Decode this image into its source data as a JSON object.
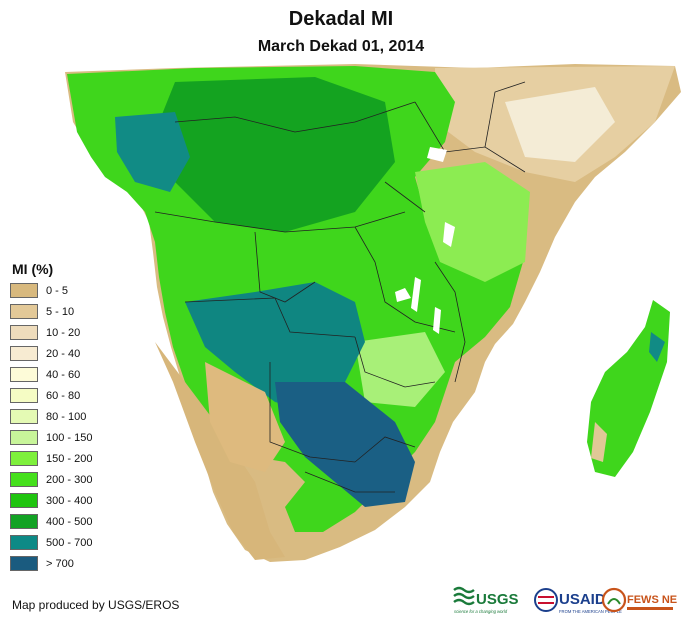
{
  "title": "Dekadal MI",
  "subtitle": "March Dekad 01, 2014",
  "legend": {
    "title": "MI (%)",
    "items": [
      {
        "label": "0 - 5",
        "color": "#d8b97e"
      },
      {
        "label": "5 - 10",
        "color": "#e3c998"
      },
      {
        "label": "10 - 20",
        "color": "#eedcbc"
      },
      {
        "label": "20 - 40",
        "color": "#f7ebd2"
      },
      {
        "label": "40 - 60",
        "color": "#fdfbd8"
      },
      {
        "label": "60 - 80",
        "color": "#f5fcc4"
      },
      {
        "label": "80 - 100",
        "color": "#e4fab4"
      },
      {
        "label": "100 - 150",
        "color": "#c8f59a"
      },
      {
        "label": "150 - 200",
        "color": "#7ef03c"
      },
      {
        "label": "200 - 300",
        "color": "#45e01c"
      },
      {
        "label": "300 - 400",
        "color": "#1fc40f"
      },
      {
        "label": "400 - 500",
        "color": "#12a224"
      },
      {
        "label": "500 - 700",
        "color": "#0d8a86"
      },
      {
        "label": "> 700",
        "color": "#1a5b7f"
      }
    ]
  },
  "credit": "Map produced by USGS/EROS",
  "logos": {
    "usgs": "USGS",
    "usgs_tagline": "science for a changing world",
    "usaid": "USAID",
    "usaid_tagline": "FROM THE AMERICAN PEOPLE",
    "fewsnet": "FEWS NET"
  }
}
